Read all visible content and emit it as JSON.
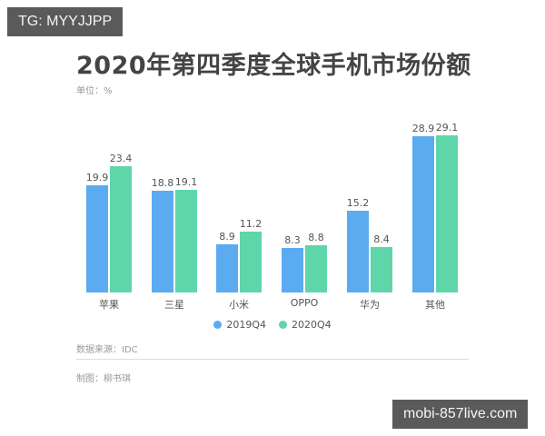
{
  "watermarks": {
    "top": "TG: MYYJJPP",
    "bottom": "mobi-857live.com"
  },
  "header": {
    "title": "2020年第四季度全球手机市场份额",
    "unit": "单位：%"
  },
  "legend": [
    {
      "label": "2019Q4",
      "color": "#5aabf0"
    },
    {
      "label": "2020Q4",
      "color": "#5fd6aa"
    }
  ],
  "footer": {
    "source": "数据来源：IDC",
    "author": "制图：柳书琪"
  },
  "chart_data": {
    "type": "bar",
    "title": "2020年第四季度全球手机市场份额",
    "subtitle": "单位：%",
    "xlabel": "",
    "ylabel": "",
    "categories": [
      "苹果",
      "三星",
      "小米",
      "OPPO",
      "华为",
      "其他"
    ],
    "series": [
      {
        "name": "2019Q4",
        "color": "#5aabf0",
        "values": [
          19.9,
          18.8,
          8.9,
          8.3,
          15.2,
          28.9
        ]
      },
      {
        "name": "2020Q4",
        "color": "#5fd6aa",
        "values": [
          23.4,
          19.1,
          11.2,
          8.8,
          8.4,
          29.1
        ]
      }
    ],
    "ylim": [
      0,
      30
    ],
    "grid": false,
    "data_labels": true,
    "legend_position": "bottom",
    "source": "数据来源：IDC",
    "credit": "制图：柳书琪"
  }
}
